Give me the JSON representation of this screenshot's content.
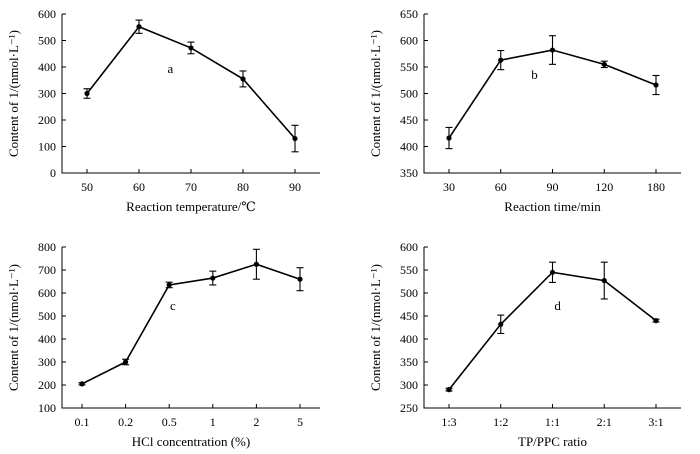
{
  "chart_data": [
    {
      "type": "line",
      "panel": "a",
      "xlabel": "Reaction temperature/℃",
      "ylabel": "Content of 1/(nmol·L⁻¹)",
      "categories": [
        "50",
        "60",
        "70",
        "80",
        "90"
      ],
      "values": [
        300,
        552,
        472,
        355,
        130
      ],
      "errors": [
        18,
        25,
        22,
        30,
        50
      ],
      "ylim": [
        0,
        600
      ],
      "yticks": [
        0,
        100,
        200,
        300,
        400,
        500,
        600
      ]
    },
    {
      "type": "line",
      "panel": "b",
      "xlabel": "Reaction time/min",
      "ylabel": "Content of 1/(nmol·L⁻¹)",
      "categories": [
        "30",
        "60",
        "90",
        "120",
        "180"
      ],
      "values": [
        416,
        563,
        582,
        555,
        516
      ],
      "errors": [
        20,
        18,
        27,
        6,
        18
      ],
      "ylim": [
        350,
        650
      ],
      "yticks": [
        350,
        400,
        450,
        500,
        550,
        600,
        650
      ]
    },
    {
      "type": "line",
      "panel": "c",
      "xlabel": "HCl concentration (%)",
      "ylabel": "Content of 1/(nmol·L⁻¹)",
      "categories": [
        "0.1",
        "0.2",
        "0.5",
        "1",
        "2",
        "5"
      ],
      "values": [
        205,
        300,
        635,
        665,
        725,
        660
      ],
      "errors": [
        5,
        12,
        12,
        30,
        65,
        50
      ],
      "ylim": [
        100,
        800
      ],
      "yticks": [
        100,
        200,
        300,
        400,
        500,
        600,
        700,
        800
      ]
    },
    {
      "type": "line",
      "panel": "d",
      "xlabel": "TP/PPC ratio",
      "ylabel": "Content of 1/(nmol·L⁻¹)",
      "categories": [
        "1:3",
        "1:2",
        "1:1",
        "2:1",
        "3:1"
      ],
      "values": [
        290,
        432,
        545,
        527,
        440
      ],
      "errors": [
        3,
        20,
        22,
        40,
        3
      ],
      "ylim": [
        250,
        600
      ],
      "yticks": [
        250,
        300,
        350,
        400,
        450,
        500,
        550,
        600
      ]
    }
  ]
}
